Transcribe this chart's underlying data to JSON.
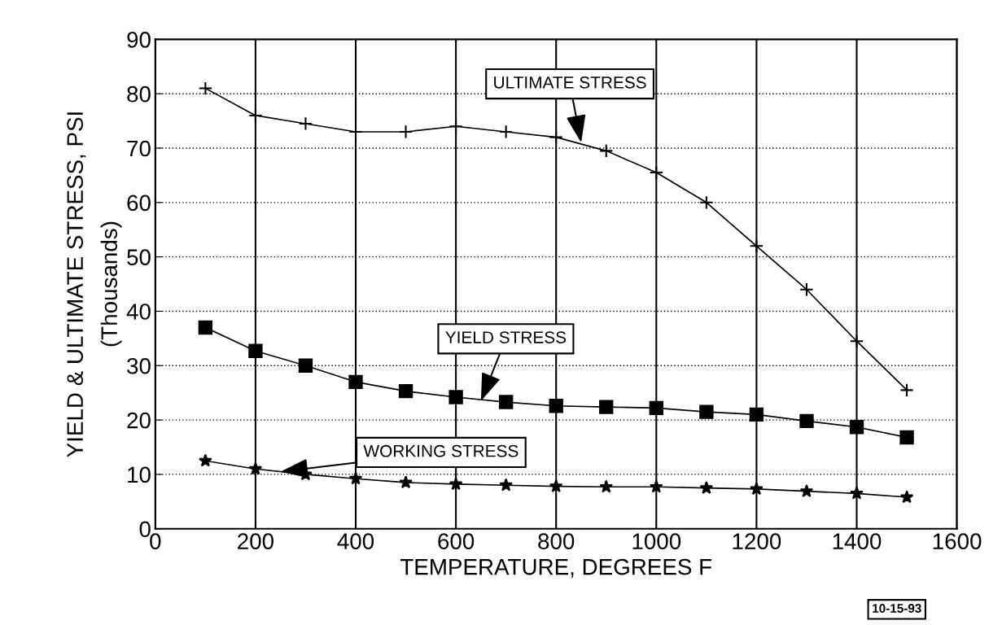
{
  "chart_data": {
    "type": "line",
    "xlabel": "TEMPERATURE, DEGREES F",
    "ylabel": "YIELD & ULTIMATE STRESS, PSI\n(Thousands)",
    "x": [
      100,
      200,
      300,
      400,
      500,
      600,
      700,
      800,
      900,
      1000,
      1100,
      1200,
      1300,
      1400,
      1500
    ],
    "series": [
      {
        "color": "#000000",
        "marker": "cross",
        "values": [
          81,
          76,
          74.5,
          73,
          73,
          74,
          73,
          72,
          69.5,
          65.5,
          60,
          52,
          44,
          34.5,
          25.5
        ]
      },
      {
        "color": "#000000",
        "marker": "square",
        "values": [
          37,
          32.7,
          30,
          27,
          25.3,
          24.2,
          23.3,
          22.6,
          22.4,
          22.2,
          21.5,
          21,
          19.8,
          18.7,
          16.8
        ]
      },
      {
        "color": "#000000",
        "marker": "star",
        "values": [
          12.5,
          11,
          10,
          9.2,
          8.5,
          8.2,
          8,
          7.8,
          7.7,
          7.7,
          7.5,
          7.3,
          6.9,
          6.5,
          5.8
        ]
      }
    ],
    "annotations": [
      {
        "text": "ULTIMATE STRESS",
        "x": 850,
        "y": 71
      },
      {
        "text": "YIELD STRESS",
        "x": 650,
        "y": 23.5
      },
      {
        "text": "WORKING STRESS",
        "x": 250,
        "y": 10.5
      },
      "10-15-93"
    ],
    "xlim": [
      0,
      1600
    ],
    "xticks": [
      0,
      200,
      400,
      600,
      800,
      1000,
      1200,
      1400,
      1600
    ],
    "ylim": [
      0,
      90
    ],
    "yticks": [
      0,
      10,
      20,
      30,
      40,
      50,
      60,
      70,
      80,
      90
    ],
    "grid": true,
    "line_style": "solid"
  }
}
